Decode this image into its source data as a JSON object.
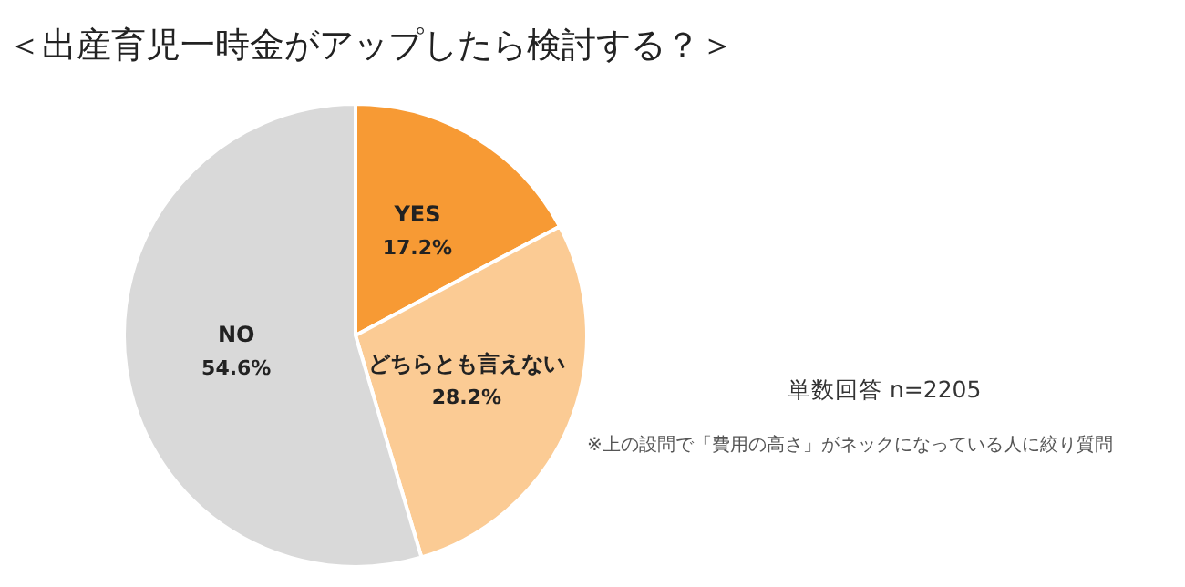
{
  "chart_data": {
    "type": "pie",
    "title": "＜出産育児一時金がアップしたら検討する？＞",
    "categories": [
      "YES",
      "どちらとも言えない",
      "NO"
    ],
    "values": [
      17.2,
      28.2,
      54.6
    ],
    "value_labels": [
      "17.2%",
      "28.2%",
      "54.6%"
    ],
    "colors": [
      "#f79a34",
      "#fbcb94",
      "#d9d9d9"
    ],
    "annotations": [
      "単数回答 n=2205",
      "※上の設問で「費用の高さ」がネックになっている人に絞り質問"
    ],
    "legend": false
  }
}
